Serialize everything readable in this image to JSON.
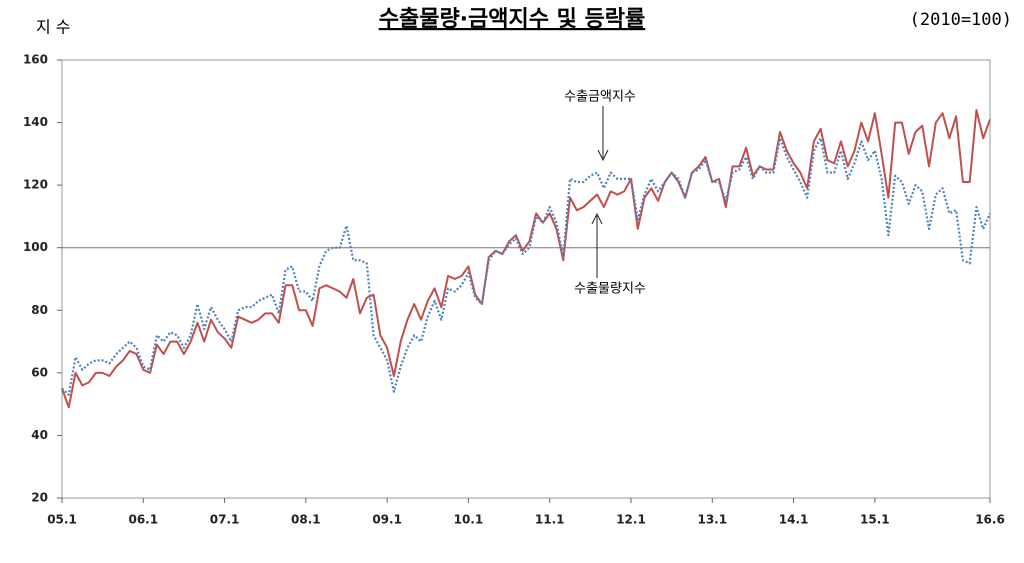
{
  "chart_data": {
    "type": "line",
    "title": "수출물량·금액지수 및 등락률",
    "y_label": "지 수",
    "subtitle": "(2010=100)",
    "categories": [
      "05.1",
      null,
      null,
      null,
      null,
      null,
      null,
      null,
      null,
      null,
      null,
      null,
      "06.1",
      null,
      null,
      null,
      null,
      null,
      null,
      null,
      null,
      null,
      null,
      null,
      "07.1",
      null,
      null,
      null,
      null,
      null,
      null,
      null,
      null,
      null,
      null,
      null,
      "08.1",
      null,
      null,
      null,
      null,
      null,
      null,
      null,
      null,
      null,
      null,
      null,
      "09.1",
      null,
      null,
      null,
      null,
      null,
      null,
      null,
      null,
      null,
      null,
      null,
      "10.1",
      null,
      null,
      null,
      null,
      null,
      null,
      null,
      null,
      null,
      null,
      null,
      "11.1",
      null,
      null,
      null,
      null,
      null,
      null,
      null,
      null,
      null,
      null,
      null,
      "12.1",
      null,
      null,
      null,
      null,
      null,
      null,
      null,
      null,
      null,
      null,
      null,
      "13.1",
      null,
      null,
      null,
      null,
      null,
      null,
      null,
      null,
      null,
      null,
      null,
      "14.1",
      null,
      null,
      null,
      null,
      null,
      null,
      null,
      null,
      null,
      null,
      null,
      "15.1",
      null,
      null,
      null,
      null,
      null,
      null,
      null,
      null,
      null,
      null,
      null,
      null,
      null,
      null,
      null,
      null,
      "16.6"
    ],
    "series": [
      {
        "name": "수출물량지수",
        "color": "#c0504d",
        "dashed": false,
        "values": [
          55,
          49,
          60,
          56,
          57,
          60,
          60,
          59,
          62,
          64,
          67,
          66,
          61,
          60,
          69,
          66,
          70,
          70,
          66,
          70,
          76,
          70,
          77,
          73,
          71,
          68,
          78,
          77,
          76,
          77,
          79,
          79,
          76,
          88,
          88,
          80,
          80,
          75,
          87,
          88,
          87,
          86,
          84,
          90,
          79,
          84,
          85,
          72,
          68,
          59,
          70,
          77,
          82,
          77,
          83,
          87,
          81,
          91,
          90,
          91,
          94,
          85,
          82,
          97,
          99,
          98,
          102,
          104,
          99,
          102,
          111,
          108,
          111,
          106,
          96,
          116,
          112,
          113,
          115,
          117,
          113,
          118,
          117,
          118,
          122,
          106,
          116,
          119,
          115,
          121,
          124,
          121,
          116,
          124,
          126,
          129,
          121,
          122,
          113,
          126,
          126,
          132,
          123,
          126,
          125,
          125,
          137,
          131,
          127,
          124,
          119,
          134,
          138,
          128,
          127,
          134,
          126,
          131,
          140,
          134,
          143,
          130,
          116,
          140,
          140,
          130,
          137,
          139,
          126,
          140,
          143,
          135,
          142,
          121,
          121,
          144,
          135,
          141
        ]
      },
      {
        "name": "수출금액지수",
        "color": "#4f81bd",
        "dashed": true,
        "values": [
          55,
          53,
          65,
          61,
          63,
          64,
          64,
          63,
          66,
          68,
          70,
          68,
          62,
          61,
          72,
          70,
          73,
          72,
          68,
          72,
          82,
          74,
          81,
          77,
          74,
          70,
          80,
          81,
          81,
          83,
          84,
          85,
          79,
          93,
          94,
          86,
          86,
          83,
          94,
          99,
          100,
          100,
          107,
          96,
          96,
          95,
          72,
          68,
          64,
          54,
          62,
          68,
          72,
          70,
          78,
          83,
          77,
          87,
          86,
          88,
          92,
          84,
          82,
          96,
          99,
          98,
          101,
          103,
          98,
          100,
          110,
          108,
          113,
          108,
          97,
          122,
          121,
          121,
          123,
          124,
          119,
          124,
          122,
          122,
          122,
          109,
          117,
          122,
          118,
          121,
          124,
          122,
          116,
          124,
          125,
          128,
          121,
          121,
          115,
          124,
          125,
          129,
          122,
          126,
          124,
          124,
          135,
          129,
          125,
          121,
          116,
          131,
          135,
          124,
          124,
          131,
          122,
          127,
          134,
          128,
          131,
          122,
          104,
          123,
          121,
          114,
          120,
          118,
          106,
          117,
          119,
          111,
          112,
          96,
          95,
          113,
          106,
          111
        ]
      }
    ],
    "ylim": [
      20,
      160
    ],
    "yticks": [
      20,
      40,
      60,
      80,
      100,
      120,
      140,
      160
    ],
    "reference_line": 100
  }
}
